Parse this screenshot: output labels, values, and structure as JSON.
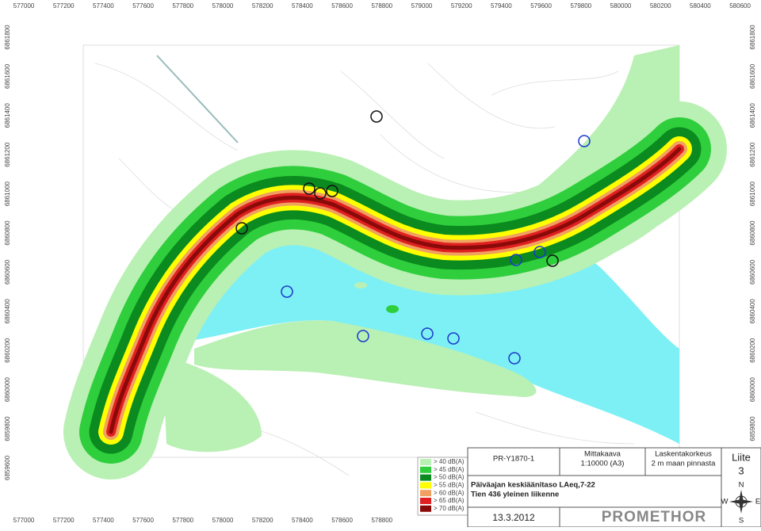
{
  "grid_labels": {
    "top": [
      "577000",
      "577200",
      "577400",
      "577600",
      "577800",
      "578000",
      "578200",
      "578400",
      "578600",
      "578800",
      "579000",
      "579200",
      "579400",
      "579600",
      "579800",
      "580000",
      "580200",
      "580400",
      "580600"
    ],
    "bottom": [
      "577000",
      "577200",
      "577400",
      "577600",
      "577800",
      "578000",
      "578200",
      "578400",
      "578600",
      "578800"
    ],
    "left": [
      "6861800",
      "6861600",
      "6861400",
      "6861200",
      "6861000",
      "6860800",
      "6860600",
      "6860400",
      "6860200",
      "6860000",
      "6859800",
      "6859600"
    ],
    "right": [
      "6861800",
      "6861600",
      "6861400",
      "6861200",
      "6861000",
      "6860800",
      "6860600",
      "6860400",
      "6860200",
      "6860000",
      "6859800",
      "6859600"
    ]
  },
  "legend": [
    {
      "label": "> 40 dB(A)",
      "color": "#b9f0b4"
    },
    {
      "label": "> 45 dB(A)",
      "color": "#2fce3c"
    },
    {
      "label": "> 50 dB(A)",
      "color": "#0b8a1f"
    },
    {
      "label": "> 55 dB(A)",
      "color": "#ffff00"
    },
    {
      "label": "> 60 dB(A)",
      "color": "#f0a060"
    },
    {
      "label": "> 65 dB(A)",
      "color": "#e02020"
    },
    {
      "label": "> 70 dB(A)",
      "color": "#8a0a0a"
    }
  ],
  "title_block": {
    "project": "PR-Y1870-1",
    "scale_label": "Mittakaava",
    "scale": "1:10000 (A3)",
    "height_label": "Laskentakorkeus",
    "height": "2 m maan pinnasta",
    "appendix_label": "Liite",
    "appendix": "3",
    "title": "Päiväajan keskiäänitaso LAeq,7-22",
    "subtitle": "Tien 436 yleinen liikenne",
    "date": "13.3.2012",
    "company": "PROMETHOR"
  },
  "compass": {
    "n": "N",
    "w": "W",
    "e": "E",
    "s": "S"
  }
}
